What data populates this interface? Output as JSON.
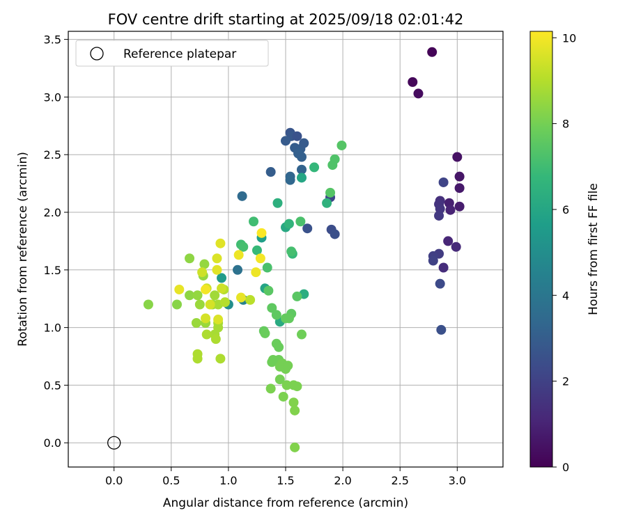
{
  "chart_data": {
    "type": "scatter",
    "title": "FOV centre drift starting at 2025/09/18 02:01:42",
    "xlabel": "Angular distance from reference (arcmin)",
    "ylabel": "Rotation from reference (arcmin)",
    "xlim": [
      -0.4,
      3.4
    ],
    "ylim": [
      -0.21,
      3.57
    ],
    "xticks": [
      0.0,
      0.5,
      1.0,
      1.5,
      2.0,
      2.5,
      3.0
    ],
    "yticks": [
      0.0,
      0.5,
      1.0,
      1.5,
      2.0,
      2.5,
      3.0,
      3.5
    ],
    "grid": true,
    "legend": {
      "position": "top-left",
      "entries": [
        {
          "label": "Reference platepar",
          "marker": "open-circle"
        }
      ]
    },
    "reference_point": {
      "x": 0.0,
      "y": 0.0
    },
    "colorbar": {
      "label": "Hours from first FF file",
      "colormap": "viridis",
      "range": [
        0,
        10.15
      ],
      "ticks": [
        0,
        2,
        4,
        6,
        8,
        10
      ]
    },
    "points": [
      {
        "x": 2.78,
        "y": 3.39,
        "c": 0.1
      },
      {
        "x": 2.61,
        "y": 3.13,
        "c": 0.2
      },
      {
        "x": 2.66,
        "y": 3.03,
        "c": 0.3
      },
      {
        "x": 3.0,
        "y": 2.48,
        "c": 0.5
      },
      {
        "x": 3.02,
        "y": 2.31,
        "c": 0.6
      },
      {
        "x": 3.02,
        "y": 2.21,
        "c": 0.7
      },
      {
        "x": 3.02,
        "y": 2.05,
        "c": 0.8
      },
      {
        "x": 2.93,
        "y": 2.08,
        "c": 0.9
      },
      {
        "x": 2.94,
        "y": 2.02,
        "c": 1.0
      },
      {
        "x": 2.92,
        "y": 1.75,
        "c": 1.1
      },
      {
        "x": 2.99,
        "y": 1.7,
        "c": 1.2
      },
      {
        "x": 2.88,
        "y": 1.52,
        "c": 1.3
      },
      {
        "x": 2.85,
        "y": 2.1,
        "c": 1.4
      },
      {
        "x": 2.84,
        "y": 2.07,
        "c": 1.5
      },
      {
        "x": 2.85,
        "y": 2.03,
        "c": 1.6
      },
      {
        "x": 2.84,
        "y": 1.97,
        "c": 1.7
      },
      {
        "x": 2.84,
        "y": 1.64,
        "c": 1.8
      },
      {
        "x": 2.79,
        "y": 1.62,
        "c": 1.9
      },
      {
        "x": 2.79,
        "y": 1.58,
        "c": 2.0
      },
      {
        "x": 2.88,
        "y": 2.26,
        "c": 2.1
      },
      {
        "x": 2.85,
        "y": 1.38,
        "c": 2.3
      },
      {
        "x": 2.86,
        "y": 0.98,
        "c": 2.5
      },
      {
        "x": 1.89,
        "y": 2.13,
        "c": 2.2
      },
      {
        "x": 1.9,
        "y": 1.85,
        "c": 2.4
      },
      {
        "x": 1.93,
        "y": 1.81,
        "c": 2.5
      },
      {
        "x": 1.69,
        "y": 1.86,
        "c": 2.6
      },
      {
        "x": 1.54,
        "y": 2.69,
        "c": 2.7
      },
      {
        "x": 1.55,
        "y": 2.66,
        "c": 2.8
      },
      {
        "x": 1.6,
        "y": 2.66,
        "c": 2.6
      },
      {
        "x": 1.5,
        "y": 2.62,
        "c": 2.9
      },
      {
        "x": 1.58,
        "y": 2.56,
        "c": 3.0
      },
      {
        "x": 1.63,
        "y": 2.55,
        "c": 3.0
      },
      {
        "x": 1.66,
        "y": 2.6,
        "c": 2.9
      },
      {
        "x": 1.61,
        "y": 2.51,
        "c": 3.1
      },
      {
        "x": 1.64,
        "y": 2.48,
        "c": 3.1
      },
      {
        "x": 1.37,
        "y": 2.35,
        "c": 3.0
      },
      {
        "x": 1.64,
        "y": 2.37,
        "c": 3.2
      },
      {
        "x": 1.54,
        "y": 2.31,
        "c": 3.3
      },
      {
        "x": 1.54,
        "y": 2.28,
        "c": 3.4
      },
      {
        "x": 1.12,
        "y": 2.14,
        "c": 3.5
      },
      {
        "x": 1.08,
        "y": 1.5,
        "c": 3.8
      },
      {
        "x": 1.13,
        "y": 1.24,
        "c": 4.5
      },
      {
        "x": 1.0,
        "y": 1.2,
        "c": 5.0
      },
      {
        "x": 0.94,
        "y": 1.43,
        "c": 5.5
      },
      {
        "x": 1.29,
        "y": 1.78,
        "c": 5.7
      },
      {
        "x": 1.32,
        "y": 1.34,
        "c": 5.9
      },
      {
        "x": 1.64,
        "y": 2.3,
        "c": 6.0
      },
      {
        "x": 1.5,
        "y": 1.87,
        "c": 6.1
      },
      {
        "x": 1.66,
        "y": 1.29,
        "c": 6.3
      },
      {
        "x": 1.45,
        "y": 1.05,
        "c": 6.2
      },
      {
        "x": 1.43,
        "y": 2.08,
        "c": 6.4
      },
      {
        "x": 1.86,
        "y": 2.08,
        "c": 6.5
      },
      {
        "x": 1.53,
        "y": 1.9,
        "c": 6.6
      },
      {
        "x": 1.75,
        "y": 2.39,
        "c": 6.7
      },
      {
        "x": 1.56,
        "y": 1.64,
        "c": 6.8
      },
      {
        "x": 1.25,
        "y": 1.67,
        "c": 6.8
      },
      {
        "x": 1.22,
        "y": 1.92,
        "c": 7.0
      },
      {
        "x": 1.11,
        "y": 1.72,
        "c": 7.0
      },
      {
        "x": 1.13,
        "y": 1.7,
        "c": 7.1
      },
      {
        "x": 1.55,
        "y": 1.66,
        "c": 7.1
      },
      {
        "x": 1.63,
        "y": 1.92,
        "c": 7.2
      },
      {
        "x": 1.34,
        "y": 1.52,
        "c": 7.2
      },
      {
        "x": 1.93,
        "y": 2.46,
        "c": 7.3
      },
      {
        "x": 1.91,
        "y": 2.41,
        "c": 7.3
      },
      {
        "x": 1.99,
        "y": 2.58,
        "c": 7.4
      },
      {
        "x": 1.89,
        "y": 2.17,
        "c": 7.4
      },
      {
        "x": 1.6,
        "y": 1.27,
        "c": 7.5
      },
      {
        "x": 1.35,
        "y": 1.32,
        "c": 7.5
      },
      {
        "x": 1.38,
        "y": 1.17,
        "c": 7.6
      },
      {
        "x": 1.42,
        "y": 1.11,
        "c": 7.6
      },
      {
        "x": 1.55,
        "y": 1.12,
        "c": 7.6
      },
      {
        "x": 1.5,
        "y": 1.08,
        "c": 7.7
      },
      {
        "x": 1.53,
        "y": 1.08,
        "c": 7.7
      },
      {
        "x": 1.31,
        "y": 0.97,
        "c": 7.7
      },
      {
        "x": 1.32,
        "y": 0.95,
        "c": 7.8
      },
      {
        "x": 1.42,
        "y": 0.86,
        "c": 7.8
      },
      {
        "x": 1.44,
        "y": 0.83,
        "c": 7.8
      },
      {
        "x": 1.64,
        "y": 0.94,
        "c": 7.9
      },
      {
        "x": 1.39,
        "y": 0.72,
        "c": 7.9
      },
      {
        "x": 1.38,
        "y": 0.7,
        "c": 7.9
      },
      {
        "x": 1.44,
        "y": 0.72,
        "c": 7.9
      },
      {
        "x": 1.47,
        "y": 0.69,
        "c": 8.0
      },
      {
        "x": 1.45,
        "y": 0.66,
        "c": 8.0
      },
      {
        "x": 1.5,
        "y": 0.64,
        "c": 8.0
      },
      {
        "x": 1.52,
        "y": 0.67,
        "c": 8.0
      },
      {
        "x": 1.45,
        "y": 0.55,
        "c": 8.0
      },
      {
        "x": 1.51,
        "y": 0.5,
        "c": 8.1
      },
      {
        "x": 1.57,
        "y": 0.5,
        "c": 8.1
      },
      {
        "x": 1.6,
        "y": 0.49,
        "c": 8.1
      },
      {
        "x": 1.37,
        "y": 0.47,
        "c": 8.1
      },
      {
        "x": 1.48,
        "y": 0.4,
        "c": 8.1
      },
      {
        "x": 1.57,
        "y": 0.35,
        "c": 8.2
      },
      {
        "x": 1.58,
        "y": 0.28,
        "c": 8.2
      },
      {
        "x": 1.58,
        "y": -0.04,
        "c": 8.2
      },
      {
        "x": 0.3,
        "y": 1.2,
        "c": 8.3
      },
      {
        "x": 0.55,
        "y": 1.2,
        "c": 8.3
      },
      {
        "x": 0.66,
        "y": 1.6,
        "c": 8.4
      },
      {
        "x": 0.66,
        "y": 1.28,
        "c": 8.4
      },
      {
        "x": 0.73,
        "y": 1.28,
        "c": 8.5
      },
      {
        "x": 0.78,
        "y": 1.45,
        "c": 8.5
      },
      {
        "x": 0.79,
        "y": 1.55,
        "c": 8.5
      },
      {
        "x": 0.75,
        "y": 1.2,
        "c": 8.6
      },
      {
        "x": 0.72,
        "y": 1.04,
        "c": 8.6
      },
      {
        "x": 0.8,
        "y": 1.04,
        "c": 8.6
      },
      {
        "x": 0.88,
        "y": 1.28,
        "c": 8.7
      },
      {
        "x": 0.86,
        "y": 1.2,
        "c": 8.7
      },
      {
        "x": 0.91,
        "y": 1.2,
        "c": 8.8
      },
      {
        "x": 0.91,
        "y": 1.04,
        "c": 8.8
      },
      {
        "x": 0.91,
        "y": 1.0,
        "c": 8.8
      },
      {
        "x": 0.88,
        "y": 0.94,
        "c": 8.8
      },
      {
        "x": 0.89,
        "y": 0.9,
        "c": 8.9
      },
      {
        "x": 0.81,
        "y": 0.94,
        "c": 8.9
      },
      {
        "x": 0.73,
        "y": 0.77,
        "c": 8.9
      },
      {
        "x": 0.73,
        "y": 0.73,
        "c": 8.9
      },
      {
        "x": 0.93,
        "y": 0.73,
        "c": 8.9
      },
      {
        "x": 0.97,
        "y": 1.22,
        "c": 9.0
      },
      {
        "x": 0.96,
        "y": 1.33,
        "c": 9.0
      },
      {
        "x": 1.19,
        "y": 1.24,
        "c": 9.1
      },
      {
        "x": 0.94,
        "y": 1.34,
        "c": 9.4
      },
      {
        "x": 0.77,
        "y": 1.48,
        "c": 9.4
      },
      {
        "x": 0.81,
        "y": 1.34,
        "c": 9.4
      },
      {
        "x": 0.84,
        "y": 1.2,
        "c": 9.5
      },
      {
        "x": 0.8,
        "y": 1.08,
        "c": 9.5
      },
      {
        "x": 0.91,
        "y": 1.07,
        "c": 9.6
      },
      {
        "x": 0.9,
        "y": 1.6,
        "c": 9.6
      },
      {
        "x": 0.9,
        "y": 1.5,
        "c": 9.7
      },
      {
        "x": 0.93,
        "y": 1.73,
        "c": 9.7
      },
      {
        "x": 0.57,
        "y": 1.33,
        "c": 9.8
      },
      {
        "x": 1.11,
        "y": 1.26,
        "c": 9.8
      },
      {
        "x": 1.09,
        "y": 1.63,
        "c": 9.9
      },
      {
        "x": 1.24,
        "y": 1.48,
        "c": 9.9
      },
      {
        "x": 1.28,
        "y": 1.6,
        "c": 10.0
      },
      {
        "x": 1.29,
        "y": 1.82,
        "c": 10.1
      },
      {
        "x": 0.8,
        "y": 1.33,
        "c": 10.0
      }
    ]
  }
}
